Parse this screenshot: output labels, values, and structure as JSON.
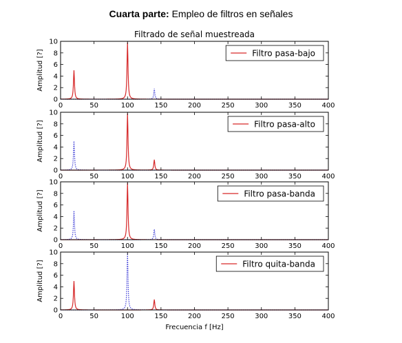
{
  "header": {
    "bold": "Cuarta parte:",
    "rest": " Empleo de filtros en señales"
  },
  "chart_data": [
    {
      "type": "line",
      "title": "Filtrado de señal muestreada",
      "legend": "Filtro pasa-bajo",
      "legend_position": "top-right",
      "ylabel": "Amplitud [?]",
      "xlabel": "",
      "xlim": [
        0,
        400
      ],
      "ylim": [
        0,
        10
      ],
      "xticks": [
        0,
        50,
        100,
        150,
        200,
        250,
        300,
        350,
        400
      ],
      "yticks": [
        0,
        2,
        4,
        6,
        8,
        10
      ],
      "grid": false,
      "series": [
        {
          "name": "Filtro pasa-bajo",
          "style": "solid",
          "color": "#d62728",
          "peaks": [
            {
              "x": 20,
              "y": 5.0
            },
            {
              "x": 100,
              "y": 9.8
            }
          ]
        },
        {
          "style": "dotted",
          "color": "#3b3bd6",
          "peaks": [
            {
              "x": 140,
              "y": 1.8
            }
          ]
        }
      ]
    },
    {
      "type": "line",
      "legend": "Filtro pasa-alto",
      "legend_position": "top-right",
      "ylabel": "Amplitud [?]",
      "xlabel": "",
      "xlim": [
        0,
        400
      ],
      "ylim": [
        0,
        10
      ],
      "xticks": [
        0,
        50,
        100,
        150,
        200,
        250,
        300,
        350,
        400
      ],
      "yticks": [
        0,
        2,
        4,
        6,
        8,
        10
      ],
      "grid": false,
      "series": [
        {
          "name": "Filtro pasa-alto",
          "style": "solid",
          "color": "#d62728",
          "peaks": [
            {
              "x": 100,
              "y": 9.8
            },
            {
              "x": 140,
              "y": 1.8
            }
          ]
        },
        {
          "style": "dotted",
          "color": "#3b3bd6",
          "peaks": [
            {
              "x": 20,
              "y": 5.0
            }
          ]
        }
      ]
    },
    {
      "type": "line",
      "legend": "Filtro pasa-banda",
      "legend_position": "top-right",
      "ylabel": "Amplitud [?]",
      "xlabel": "",
      "xlim": [
        0,
        400
      ],
      "ylim": [
        0,
        10
      ],
      "xticks": [
        0,
        50,
        100,
        150,
        200,
        250,
        300,
        350,
        400
      ],
      "yticks": [
        0,
        2,
        4,
        6,
        8,
        10
      ],
      "grid": false,
      "series": [
        {
          "name": "Filtro pasa-banda",
          "style": "solid",
          "color": "#d62728",
          "peaks": [
            {
              "x": 100,
              "y": 9.8
            }
          ]
        },
        {
          "style": "dotted",
          "color": "#3b3bd6",
          "peaks": [
            {
              "x": 20,
              "y": 5.0
            },
            {
              "x": 140,
              "y": 1.8
            }
          ]
        }
      ]
    },
    {
      "type": "line",
      "legend": "Filtro quita-banda",
      "legend_position": "top-right",
      "ylabel": "Amplitud [?]",
      "xlabel": "Frecuencia f [Hz]",
      "xlim": [
        0,
        400
      ],
      "ylim": [
        0,
        10
      ],
      "xticks": [
        0,
        50,
        100,
        150,
        200,
        250,
        300,
        350,
        400
      ],
      "yticks": [
        0,
        2,
        4,
        6,
        8,
        10
      ],
      "grid": false,
      "series": [
        {
          "name": "Filtro quita-banda",
          "style": "solid",
          "color": "#d62728",
          "peaks": [
            {
              "x": 20,
              "y": 5.0
            },
            {
              "x": 140,
              "y": 1.8
            }
          ]
        },
        {
          "style": "dotted",
          "color": "#3b3bd6",
          "peaks": [
            {
              "x": 100,
              "y": 9.8
            }
          ]
        }
      ]
    }
  ]
}
